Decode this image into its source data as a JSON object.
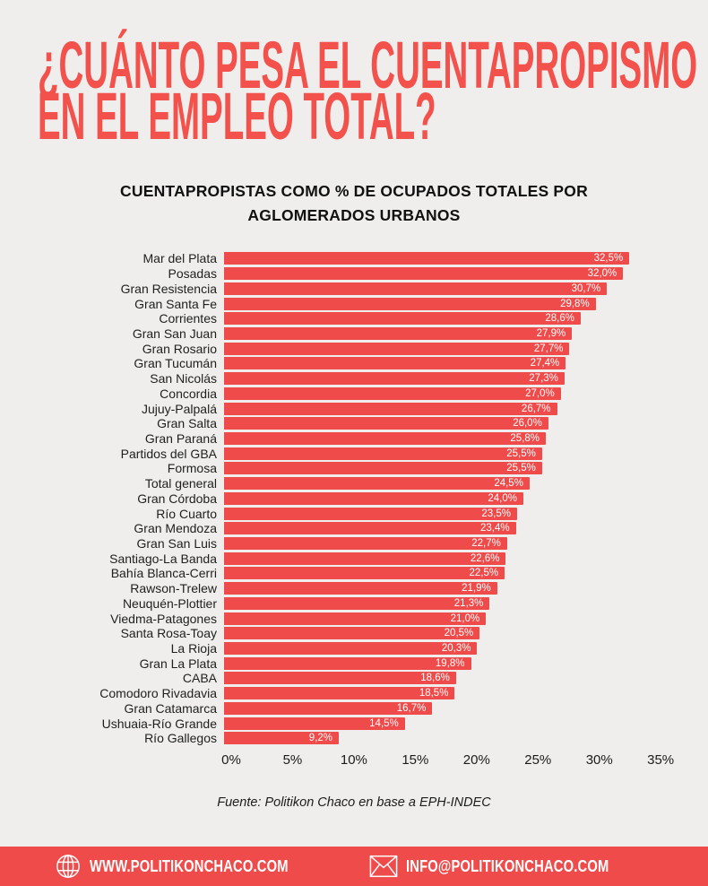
{
  "title": {
    "line1": "¿CUÁNTO PESA EL CUENTAPROPISMO",
    "line2": "EN EL EMPLEO TOTAL?"
  },
  "chart_data": {
    "type": "bar",
    "orientation": "horizontal",
    "title": "CUENTAPROPISTAS COMO % DE OCUPADOS TOTALES POR AGLOMERADOS URBANOS",
    "xlabel": "",
    "ylabel": "",
    "unit": "%",
    "grid": false,
    "legend_position": "none",
    "axis": {
      "min": 0,
      "max": 35.5,
      "ticks": [
        {
          "value": 0,
          "label": "0%"
        },
        {
          "value": 5,
          "label": "5%"
        },
        {
          "value": 10,
          "label": "10%"
        },
        {
          "value": 15,
          "label": "15%"
        },
        {
          "value": 20,
          "label": "20%"
        },
        {
          "value": 25,
          "label": "25%"
        },
        {
          "value": 30,
          "label": "30%"
        },
        {
          "value": 35,
          "label": "35%"
        }
      ]
    },
    "rows": [
      {
        "name": "Mar del Plata",
        "value": 32.5,
        "display": "32,5%"
      },
      {
        "name": "Posadas",
        "value": 32.0,
        "display": "32,0%"
      },
      {
        "name": "Gran Resistencia",
        "value": 30.7,
        "display": "30,7%"
      },
      {
        "name": "Gran Santa Fe",
        "value": 29.8,
        "display": "29,8%"
      },
      {
        "name": "Corrientes",
        "value": 28.6,
        "display": "28,6%"
      },
      {
        "name": "Gran San Juan",
        "value": 27.9,
        "display": "27,9%"
      },
      {
        "name": "Gran Rosario",
        "value": 27.7,
        "display": "27,7%"
      },
      {
        "name": "Gran Tucumán",
        "value": 27.4,
        "display": "27,4%"
      },
      {
        "name": "San Nicolás",
        "value": 27.3,
        "display": "27,3%"
      },
      {
        "name": "Concordia",
        "value": 27.0,
        "display": "27,0%"
      },
      {
        "name": "Jujuy-Palpalá",
        "value": 26.7,
        "display": "26,7%"
      },
      {
        "name": "Gran Salta",
        "value": 26.0,
        "display": "26,0%"
      },
      {
        "name": "Gran Paraná",
        "value": 25.8,
        "display": "25,8%"
      },
      {
        "name": "Partidos del GBA",
        "value": 25.5,
        "display": "25,5%"
      },
      {
        "name": "Formosa",
        "value": 25.5,
        "display": "25,5%"
      },
      {
        "name": "Total general",
        "value": 24.5,
        "display": "24,5%"
      },
      {
        "name": "Gran Córdoba",
        "value": 24.0,
        "display": "24,0%"
      },
      {
        "name": "Río Cuarto",
        "value": 23.5,
        "display": "23,5%"
      },
      {
        "name": "Gran Mendoza",
        "value": 23.4,
        "display": "23,4%"
      },
      {
        "name": "Gran San Luis",
        "value": 22.7,
        "display": "22,7%"
      },
      {
        "name": "Santiago-La Banda",
        "value": 22.6,
        "display": "22,6%"
      },
      {
        "name": "Bahía Blanca-Cerri",
        "value": 22.5,
        "display": "22,5%"
      },
      {
        "name": "Rawson-Trelew",
        "value": 21.9,
        "display": "21,9%"
      },
      {
        "name": "Neuquén-Plottier",
        "value": 21.3,
        "display": "21,3%"
      },
      {
        "name": "Viedma-Patagones",
        "value": 21.0,
        "display": "21,0%"
      },
      {
        "name": "Santa Rosa-Toay",
        "value": 20.5,
        "display": "20,5%"
      },
      {
        "name": "La Rioja",
        "value": 20.3,
        "display": "20,3%"
      },
      {
        "name": "Gran La Plata",
        "value": 19.8,
        "display": "19,8%"
      },
      {
        "name": "CABA",
        "value": 18.6,
        "display": "18,6%"
      },
      {
        "name": "Comodoro Rivadavia",
        "value": 18.5,
        "display": "18,5%"
      },
      {
        "name": "Gran Catamarca",
        "value": 16.7,
        "display": "16,7%"
      },
      {
        "name": "Ushuaia-Río Grande",
        "value": 14.5,
        "display": "14,5%"
      },
      {
        "name": "Río Gallegos",
        "value": 9.2,
        "display": "9,2%"
      }
    ],
    "bar_color": "#f04b4b",
    "value_label_color": "#ffffff",
    "source": "Fuente: Politikon Chaco en base a EPH-INDEC"
  },
  "footer": {
    "website": "WWW.POLITIKONCHACO.COM",
    "email": "INFO@POLITIKONCHACO.COM"
  },
  "colors": {
    "accent": "#f3514c",
    "bar": "#f04b4b",
    "background": "#efeeec",
    "footer_bg": "#f04b4b",
    "text": "#1d1d1d"
  }
}
